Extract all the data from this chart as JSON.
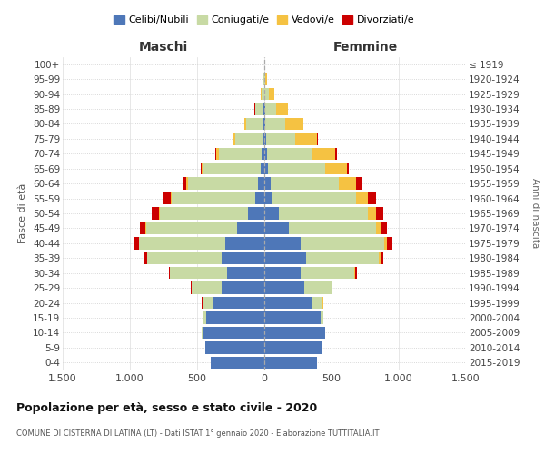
{
  "age_groups": [
    "0-4",
    "5-9",
    "10-14",
    "15-19",
    "20-24",
    "25-29",
    "30-34",
    "35-39",
    "40-44",
    "45-49",
    "50-54",
    "55-59",
    "60-64",
    "65-69",
    "70-74",
    "75-79",
    "80-84",
    "85-89",
    "90-94",
    "95-99",
    "100+"
  ],
  "birth_years": [
    "2015-2019",
    "2010-2014",
    "2005-2009",
    "2000-2004",
    "1995-1999",
    "1990-1994",
    "1985-1989",
    "1980-1984",
    "1975-1979",
    "1970-1974",
    "1965-1969",
    "1960-1964",
    "1955-1959",
    "1950-1954",
    "1945-1949",
    "1940-1944",
    "1935-1939",
    "1930-1934",
    "1925-1929",
    "1920-1924",
    "≤ 1919"
  ],
  "males": {
    "celibe": [
      400,
      440,
      460,
      430,
      380,
      320,
      280,
      320,
      290,
      200,
      120,
      70,
      50,
      30,
      20,
      15,
      8,
      5,
      2,
      0,
      0
    ],
    "coniugato": [
      1,
      2,
      5,
      20,
      80,
      220,
      420,
      550,
      640,
      680,
      660,
      620,
      520,
      420,
      320,
      200,
      130,
      60,
      20,
      5,
      1
    ],
    "vedovo": [
      0,
      0,
      0,
      0,
      1,
      1,
      2,
      3,
      5,
      5,
      5,
      8,
      10,
      15,
      20,
      15,
      10,
      5,
      2,
      0,
      0
    ],
    "divorziato": [
      0,
      0,
      0,
      1,
      2,
      5,
      10,
      20,
      30,
      40,
      50,
      50,
      30,
      10,
      8,
      5,
      4,
      2,
      0,
      0,
      0
    ]
  },
  "females": {
    "nubile": [
      390,
      430,
      450,
      420,
      360,
      300,
      270,
      310,
      270,
      180,
      110,
      60,
      45,
      25,
      18,
      12,
      8,
      5,
      2,
      0,
      0
    ],
    "coniugata": [
      1,
      2,
      4,
      18,
      75,
      200,
      400,
      540,
      620,
      650,
      660,
      620,
      510,
      430,
      340,
      220,
      150,
      80,
      35,
      8,
      1
    ],
    "vedova": [
      0,
      0,
      0,
      1,
      2,
      4,
      8,
      15,
      25,
      40,
      60,
      90,
      130,
      160,
      170,
      160,
      130,
      90,
      40,
      10,
      2
    ],
    "divorziata": [
      0,
      0,
      0,
      1,
      2,
      4,
      10,
      20,
      35,
      45,
      55,
      60,
      35,
      12,
      10,
      5,
      4,
      2,
      0,
      0,
      0
    ]
  },
  "colors": {
    "celibe": "#4e77b8",
    "coniugato": "#c8daa4",
    "vedovo": "#f5c242",
    "divorziato": "#cc0000"
  },
  "xlim": 1500,
  "title": "Popolazione per età, sesso e stato civile - 2020",
  "subtitle": "COMUNE DI CISTERNA DI LATINA (LT) - Dati ISTAT 1° gennaio 2020 - Elaborazione TUTTITALIA.IT",
  "xlabel_maschi": "Maschi",
  "xlabel_femmine": "Femmine",
  "ylabel": "Fasce di età",
  "ylabel_right": "Anni di nascita",
  "legend_labels": [
    "Celibi/Nubili",
    "Coniugati/e",
    "Vedovi/e",
    "Divorziati/e"
  ],
  "xticks": [
    -1500,
    -1000,
    -500,
    0,
    500,
    1000,
    1500
  ],
  "xtick_labels": [
    "1.500",
    "1.000",
    "500",
    "0",
    "500",
    "1.000",
    "1.500"
  ]
}
